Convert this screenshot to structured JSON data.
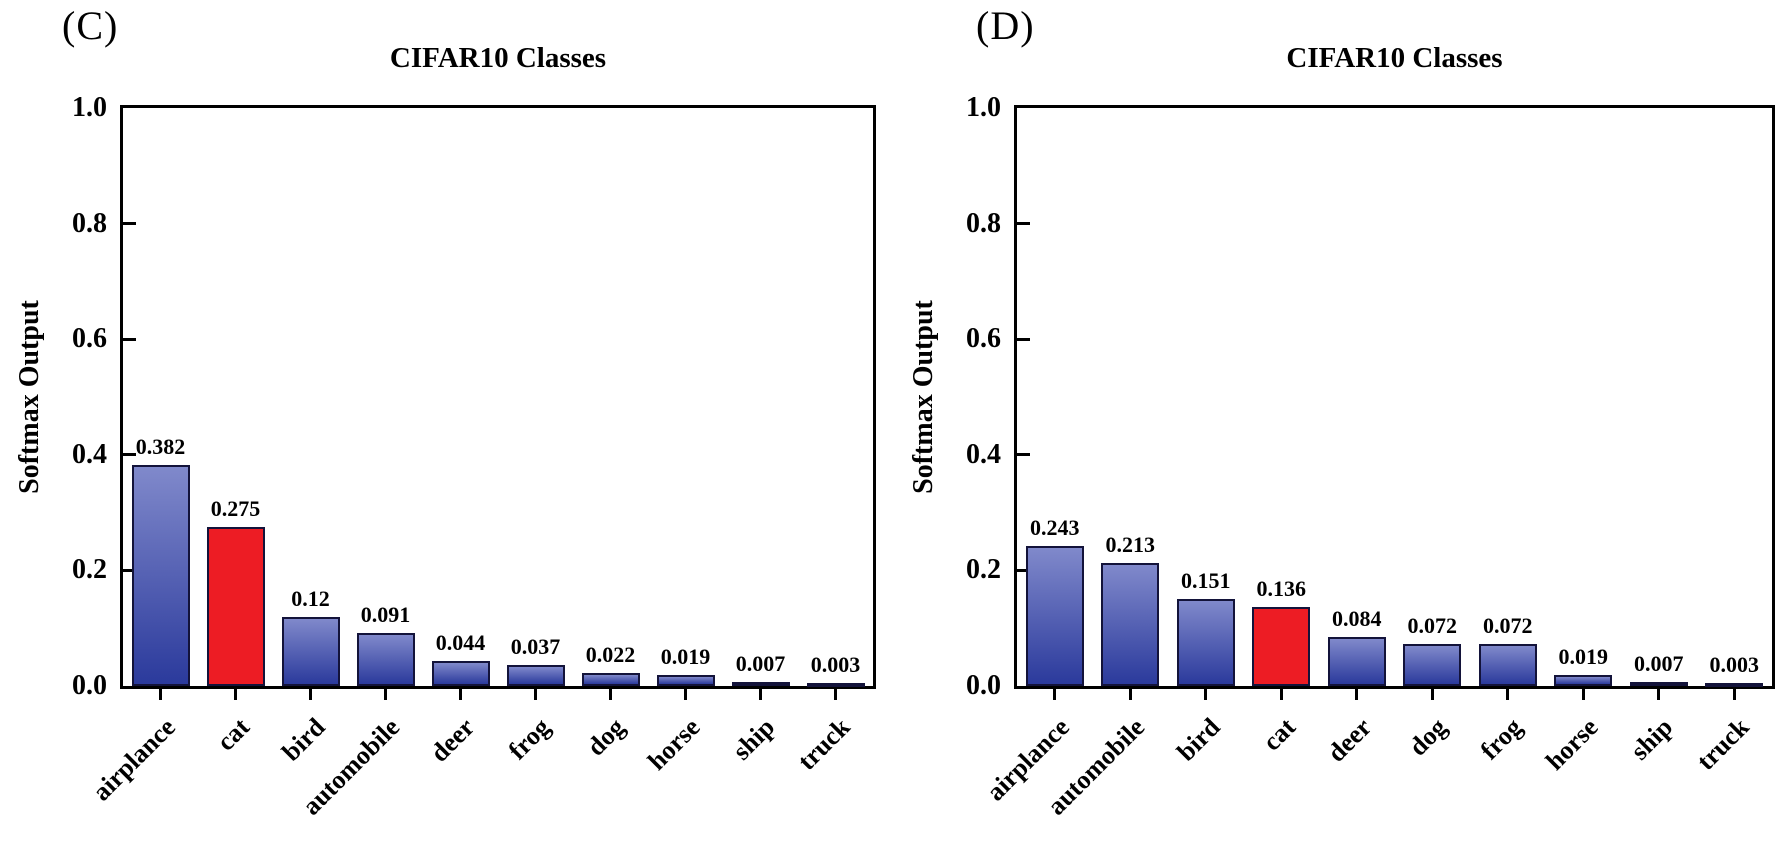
{
  "figure": {
    "background_color": "#ffffff",
    "axis_color": "#000000",
    "text_color": "#000000"
  },
  "chart_data": [
    {
      "type": "bar",
      "panel_label": "(C)",
      "title": "CIFAR10 Classes",
      "ylabel": "Softmax Output",
      "xlabel": "",
      "ylim": [
        0,
        1.0
      ],
      "grid": false,
      "legend": null,
      "ytick_values": [
        1.0,
        0.8,
        0.6,
        0.4,
        0.2,
        0.0
      ],
      "ytick_labels": [
        "1.0",
        "0.8",
        "0.6",
        "0.4",
        "0.2",
        "0.0"
      ],
      "categories": [
        "airplance",
        "cat",
        "bird",
        "automobile",
        "deer",
        "frog",
        "dog",
        "horse",
        "ship",
        "truck"
      ],
      "values": [
        0.382,
        0.275,
        0.12,
        0.091,
        0.044,
        0.037,
        0.022,
        0.019,
        0.007,
        0.003
      ],
      "value_labels": [
        "0.382",
        "0.275",
        "0.12",
        "0.091",
        "0.044",
        "0.037",
        "0.022",
        "0.019",
        "0.007",
        "0.003"
      ],
      "highlight_category": "cat",
      "highlight_index": 1,
      "highlight_color": "#ed1c24",
      "bar_gradient_top": "#8089cb",
      "bar_gradient_bottom": "#2b3a9c",
      "bar_border_color": "#13133a"
    },
    {
      "type": "bar",
      "panel_label": "(D)",
      "title": "CIFAR10 Classes",
      "ylabel": "Softmax Output",
      "xlabel": "",
      "ylim": [
        0,
        1.0
      ],
      "grid": false,
      "legend": null,
      "ytick_values": [
        1.0,
        0.8,
        0.6,
        0.4,
        0.2,
        0.0
      ],
      "ytick_labels": [
        "1.0",
        "0.8",
        "0.6",
        "0.4",
        "0.2",
        "0.0"
      ],
      "categories": [
        "airplance",
        "automobile",
        "bird",
        "cat",
        "deer",
        "dog",
        "frog",
        "horse",
        "ship",
        "truck"
      ],
      "values": [
        0.243,
        0.213,
        0.151,
        0.136,
        0.084,
        0.072,
        0.072,
        0.019,
        0.007,
        0.003
      ],
      "value_labels": [
        "0.243",
        "0.213",
        "0.151",
        "0.136",
        "0.084",
        "0.072",
        "0.072",
        "0.019",
        "0.007",
        "0.003"
      ],
      "highlight_category": "cat",
      "highlight_index": 3,
      "highlight_color": "#ed1c24",
      "bar_gradient_top": "#8089cb",
      "bar_gradient_bottom": "#2b3a9c",
      "bar_border_color": "#13133a"
    }
  ]
}
